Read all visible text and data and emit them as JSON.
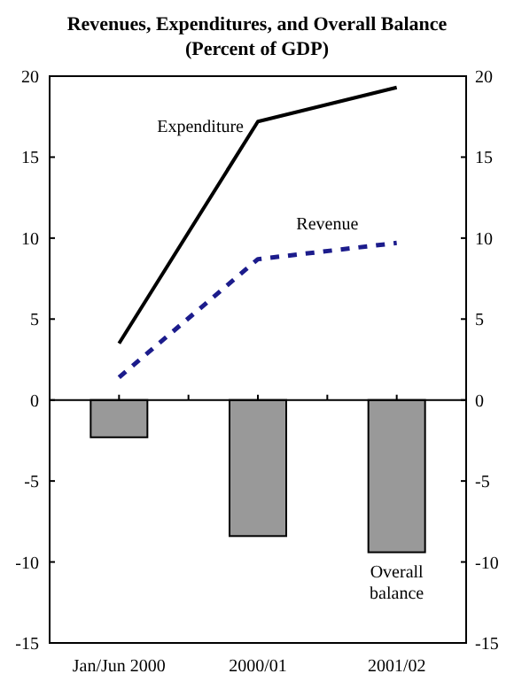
{
  "chart_data": {
    "type": "bar",
    "title": "Revenues, Expenditures, and Overall Balance",
    "subtitle": "(Percent of GDP)",
    "categories": [
      "Jan/Jun 2000",
      "2000/01",
      "2001/02"
    ],
    "series": [
      {
        "name": "Overall balance",
        "color": "#999999",
        "values": [
          -2.3,
          -8.4,
          -9.4
        ]
      },
      {
        "name": "Expenditure",
        "type": "line",
        "color": "#000000",
        "line_style": "solid",
        "values": [
          3.5,
          17.2,
          19.3
        ]
      },
      {
        "name": "Revenue",
        "type": "line",
        "color": "#1c1c8c",
        "line_style": "dashed",
        "values": [
          1.4,
          8.7,
          9.7
        ]
      }
    ],
    "ylim": [
      -15,
      20
    ],
    "yticks": [
      -15,
      -10,
      -5,
      0,
      5,
      10,
      15,
      20
    ],
    "y2lim": [
      -15,
      20
    ],
    "y2ticks": [
      -15,
      -10,
      -5,
      0,
      5,
      10,
      15,
      20
    ]
  }
}
